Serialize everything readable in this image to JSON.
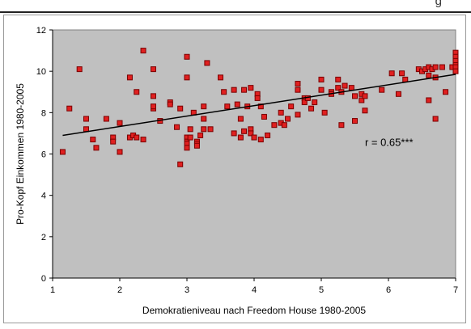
{
  "header": {
    "cut_text": "g"
  },
  "chart_data": {
    "type": "scatter",
    "xlabel": "Demokratieniveau nach Freedom House 1980-2005",
    "ylabel": "Pro-Kopf Einkommen 1980-2005",
    "xlim": [
      1,
      7
    ],
    "ylim": [
      0,
      12
    ],
    "xticks": [
      1,
      2,
      3,
      4,
      5,
      6,
      7
    ],
    "yticks": [
      0,
      2,
      4,
      6,
      8,
      10,
      12
    ],
    "annotation": "r = 0.65***",
    "trendline": {
      "x": [
        1.15,
        7
      ],
      "y": [
        6.9,
        9.85
      ]
    },
    "colors": {
      "plot_bg": "#c0c0c0",
      "point_fill": "#e02020",
      "point_stroke": "#7a0000",
      "line": "#000000"
    },
    "points": [
      [
        1.15,
        6.1
      ],
      [
        1.25,
        8.2
      ],
      [
        1.4,
        10.1
      ],
      [
        1.5,
        7.7
      ],
      [
        1.5,
        7.2
      ],
      [
        1.6,
        6.7
      ],
      [
        1.65,
        6.3
      ],
      [
        1.8,
        7.7
      ],
      [
        1.9,
        6.8
      ],
      [
        1.9,
        6.6
      ],
      [
        2.0,
        7.5
      ],
      [
        2.0,
        6.1
      ],
      [
        2.15,
        9.7
      ],
      [
        2.15,
        6.8
      ],
      [
        2.2,
        6.9
      ],
      [
        2.25,
        9.0
      ],
      [
        2.25,
        6.8
      ],
      [
        2.35,
        11.0
      ],
      [
        2.35,
        6.7
      ],
      [
        2.5,
        10.1
      ],
      [
        2.5,
        8.8
      ],
      [
        2.5,
        8.2
      ],
      [
        2.5,
        8.3
      ],
      [
        2.6,
        7.6
      ],
      [
        2.75,
        8.5
      ],
      [
        2.75,
        8.4
      ],
      [
        2.85,
        7.3
      ],
      [
        2.9,
        8.2
      ],
      [
        2.9,
        5.5
      ],
      [
        3.0,
        10.7
      ],
      [
        3.0,
        9.7
      ],
      [
        3.0,
        6.8
      ],
      [
        3.0,
        6.6
      ],
      [
        3.0,
        6.5
      ],
      [
        3.0,
        6.3
      ],
      [
        3.05,
        7.2
      ],
      [
        3.05,
        6.8
      ],
      [
        3.1,
        8.0
      ],
      [
        3.15,
        6.6
      ],
      [
        3.15,
        6.5
      ],
      [
        3.15,
        6.4
      ],
      [
        3.2,
        6.9
      ],
      [
        3.25,
        8.3
      ],
      [
        3.25,
        7.7
      ],
      [
        3.25,
        7.2
      ],
      [
        3.3,
        10.4
      ],
      [
        3.35,
        7.2
      ],
      [
        3.5,
        9.7
      ],
      [
        3.55,
        9.0
      ],
      [
        3.6,
        8.3
      ],
      [
        3.7,
        9.1
      ],
      [
        3.7,
        7.0
      ],
      [
        3.75,
        8.4
      ],
      [
        3.8,
        7.7
      ],
      [
        3.8,
        6.8
      ],
      [
        3.85,
        9.1
      ],
      [
        3.85,
        7.1
      ],
      [
        3.9,
        8.3
      ],
      [
        3.95,
        9.2
      ],
      [
        3.95,
        7.2
      ],
      [
        3.95,
        7.0
      ],
      [
        4.0,
        6.8
      ],
      [
        4.05,
        8.9
      ],
      [
        4.05,
        8.7
      ],
      [
        4.1,
        8.3
      ],
      [
        4.1,
        6.7
      ],
      [
        4.15,
        7.8
      ],
      [
        4.2,
        6.9
      ],
      [
        4.3,
        7.4
      ],
      [
        4.4,
        8.0
      ],
      [
        4.4,
        7.5
      ],
      [
        4.45,
        7.4
      ],
      [
        4.5,
        7.7
      ],
      [
        4.55,
        8.3
      ],
      [
        4.65,
        9.4
      ],
      [
        4.65,
        9.1
      ],
      [
        4.65,
        7.9
      ],
      [
        4.75,
        8.7
      ],
      [
        4.75,
        8.5
      ],
      [
        4.8,
        8.7
      ],
      [
        4.85,
        8.2
      ],
      [
        4.9,
        8.5
      ],
      [
        5.0,
        9.6
      ],
      [
        5.0,
        9.1
      ],
      [
        5.05,
        8.0
      ],
      [
        5.15,
        9.0
      ],
      [
        5.15,
        8.9
      ],
      [
        5.25,
        9.6
      ],
      [
        5.25,
        9.2
      ],
      [
        5.3,
        9.0
      ],
      [
        5.3,
        7.4
      ],
      [
        5.35,
        9.3
      ],
      [
        5.45,
        9.2
      ],
      [
        5.5,
        8.8
      ],
      [
        5.5,
        7.6
      ],
      [
        5.6,
        8.9
      ],
      [
        5.6,
        8.6
      ],
      [
        5.65,
        8.8
      ],
      [
        5.65,
        8.1
      ],
      [
        5.9,
        9.1
      ],
      [
        6.05,
        9.9
      ],
      [
        6.15,
        8.9
      ],
      [
        6.2,
        9.9
      ],
      [
        6.25,
        9.6
      ],
      [
        6.45,
        10.1
      ],
      [
        6.5,
        10.0
      ],
      [
        6.55,
        10.1
      ],
      [
        6.6,
        10.2
      ],
      [
        6.6,
        9.8
      ],
      [
        6.6,
        8.6
      ],
      [
        6.65,
        10.1
      ],
      [
        6.7,
        10.2
      ],
      [
        6.7,
        9.7
      ],
      [
        6.7,
        7.7
      ],
      [
        6.8,
        10.2
      ],
      [
        6.85,
        9.0
      ],
      [
        6.95,
        10.2
      ],
      [
        7.0,
        10.9
      ],
      [
        7.0,
        10.7
      ],
      [
        7.0,
        10.5
      ],
      [
        7.0,
        10.3
      ],
      [
        7.0,
        10.2
      ],
      [
        7.0,
        10.0
      ]
    ]
  }
}
